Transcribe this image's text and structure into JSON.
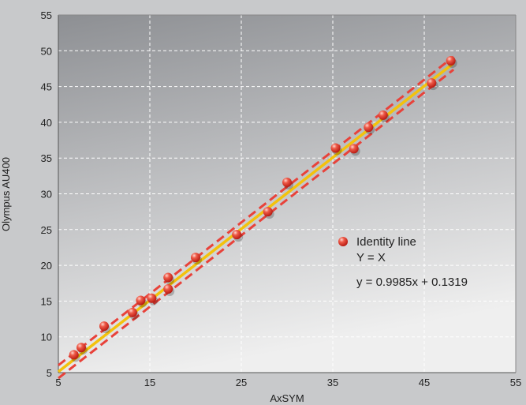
{
  "chart_data": {
    "type": "scatter",
    "title": "",
    "xlabel": "AxSYM",
    "ylabel": "Olympus AU400",
    "xlim": [
      5,
      55
    ],
    "ylim": [
      5,
      55
    ],
    "xticks": [
      5,
      15,
      25,
      35,
      45,
      55
    ],
    "yticks": [
      5,
      10,
      15,
      20,
      25,
      30,
      35,
      40,
      45,
      50,
      55
    ],
    "grid": true,
    "legend_position": "center-right",
    "points": [
      {
        "x": 6.7,
        "y": 7.5
      },
      {
        "x": 7.5,
        "y": 8.5
      },
      {
        "x": 10.0,
        "y": 11.5
      },
      {
        "x": 13.1,
        "y": 13.4
      },
      {
        "x": 14.0,
        "y": 15.1
      },
      {
        "x": 15.2,
        "y": 15.4
      },
      {
        "x": 17.0,
        "y": 16.7
      },
      {
        "x": 17.0,
        "y": 18.3
      },
      {
        "x": 20.0,
        "y": 21.1
      },
      {
        "x": 24.5,
        "y": 24.3
      },
      {
        "x": 27.9,
        "y": 27.5
      },
      {
        "x": 30.0,
        "y": 31.6
      },
      {
        "x": 35.3,
        "y": 36.4
      },
      {
        "x": 37.3,
        "y": 36.3
      },
      {
        "x": 38.9,
        "y": 39.3
      },
      {
        "x": 40.5,
        "y": 41.0
      },
      {
        "x": 45.8,
        "y": 45.5
      },
      {
        "x": 47.9,
        "y": 48.6
      }
    ],
    "series": [
      {
        "name": "Identity line",
        "style": "solid",
        "color": "#f3c20c"
      },
      {
        "name": "Y = X",
        "style": "dashed",
        "color": "#e8423a"
      }
    ],
    "regression": {
      "slope": 0.9985,
      "intercept": 0.1319,
      "x_range": [
        5,
        48.2
      ]
    },
    "confidence_offset": 0.9,
    "equation_text": "y = 0.9985x + 0.1319",
    "colors": {
      "point": "#e4302a",
      "fit_line": "#f3c20c",
      "band_line": "#e8423a",
      "plot_bg_top": "#8d8f93",
      "plot_bg_bottom": "#ececec",
      "grid": "#ffffff"
    }
  }
}
